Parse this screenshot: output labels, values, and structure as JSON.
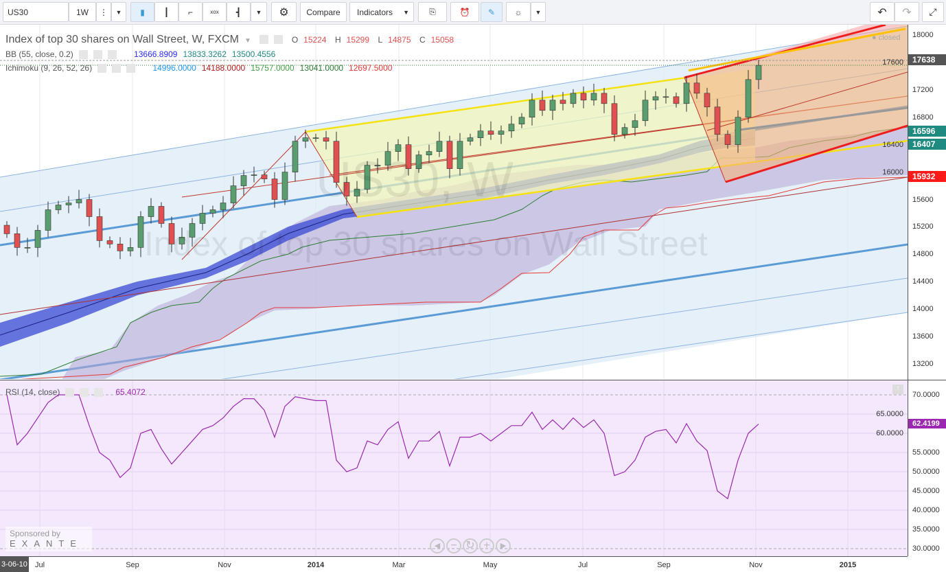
{
  "toolbar": {
    "symbol": "US30",
    "interval": "1W",
    "compare": "Compare",
    "indicators": "Indicators",
    "icons": [
      "more-icon",
      "dropdown-icon",
      "candles-icon",
      "bars-icon",
      "line-icon",
      "point-figure-icon",
      "renko-icon",
      "settings-icon",
      "embed-icon",
      "alert-icon",
      "brush-icon",
      "bulb-icon",
      "undo-icon",
      "redo-icon",
      "fullscreen-icon"
    ]
  },
  "legend": {
    "title": "Index of top 30 shares on Wall Street, W, FXCM",
    "o_label": "O",
    "o": "15224",
    "h_label": "H",
    "h": "15299",
    "l_label": "L",
    "l": "14875",
    "c_label": "C",
    "c": "15058",
    "bb": {
      "name": "BB (55, close, 0.2)",
      "v1": "13666.8909",
      "v2": "13833.3262",
      "v3": "13500.4556"
    },
    "ichimoku": {
      "name": "Ichimoku (9, 26, 52, 26)",
      "v1": "14996.0000",
      "v2": "14188.0000",
      "v3": "15757.0000",
      "v4": "13041.0000",
      "v5": "12697.5000"
    },
    "rsi": {
      "name": "RSI (14, close)",
      "value": "65.4072"
    }
  },
  "market_status": "closed",
  "watermark": {
    "symbol": "US30, W",
    "description": "Index of top 30 shares on Wall Street"
  },
  "sponsor": {
    "label": "Sponsored by",
    "brand": "EXANTE"
  },
  "price_axis": {
    "ticks": [
      "18000",
      "17600",
      "17200",
      "16800",
      "16400",
      "16000",
      "15600",
      "15200",
      "14800",
      "14400",
      "14000",
      "13600",
      "13200"
    ],
    "labels": [
      {
        "text": "17638",
        "color": "#555555",
        "price": 17638
      },
      {
        "text": "16596",
        "color": "#1e8a80",
        "price": 16596
      },
      {
        "text": "16407",
        "color": "#1e8a80",
        "price": 16407
      },
      {
        "text": "15932",
        "color": "#ff1a1a",
        "price": 15932
      }
    ]
  },
  "rsi_axis": {
    "ticks": [
      "70.0000",
      "65.0000",
      "60.0000",
      "55.0000",
      "50.0000",
      "45.0000",
      "40.0000",
      "35.0000",
      "30.0000"
    ],
    "current": "62.4199",
    "color": "#9c27b0"
  },
  "time_axis": {
    "cursor": "3-06-10",
    "ticks": [
      {
        "t": "Jul",
        "b": false
      },
      {
        "t": "Sep",
        "b": false
      },
      {
        "t": "Nov",
        "b": false
      },
      {
        "t": "2014",
        "b": true
      },
      {
        "t": "Mar",
        "b": false
      },
      {
        "t": "May",
        "b": false
      },
      {
        "t": "Jul",
        "b": false
      },
      {
        "t": "Sep",
        "b": false
      },
      {
        "t": "Nov",
        "b": false
      },
      {
        "t": "2015",
        "b": true
      }
    ]
  },
  "colors": {
    "up": "#5a9e6f",
    "down": "#e05050",
    "rsi": "#9c27b0"
  },
  "chart_data": {
    "type": "candlestick",
    "closes": [
      15100,
      14900,
      14900,
      15150,
      15450,
      15520,
      15550,
      15600,
      15350,
      15000,
      14950,
      14850,
      14900,
      15350,
      15500,
      15250,
      14950,
      15050,
      15250,
      15400,
      15450,
      15550,
      15800,
      15950,
      15960,
      15900,
      15600,
      16000,
      16450,
      16500,
      16500,
      16450,
      15850,
      15650,
      15750,
      16100,
      16100,
      16300,
      16400,
      16050,
      16250,
      16300,
      16450,
      16050,
      16450,
      16500,
      16600,
      16550,
      16600,
      16700,
      16800,
      17050,
      16900,
      17050,
      17000,
      17150,
      17050,
      17150,
      17000,
      16550,
      16650,
      16750,
      17050,
      17100,
      17100,
      17000,
      17300,
      17150,
      16950,
      16550,
      16400,
      16800,
      17350,
      17558
    ],
    "rsi": [
      70,
      57,
      60,
      64,
      68,
      70,
      70,
      70,
      62,
      55,
      53,
      48.5,
      51,
      60,
      61,
      56,
      52,
      55,
      58,
      61,
      62,
      64,
      67,
      69,
      69,
      66,
      59,
      67,
      69.5,
      69,
      68.5,
      68.5,
      53,
      50,
      51,
      58,
      57,
      61,
      63,
      53.5,
      58,
      58,
      60.5,
      51.5,
      59,
      59,
      60,
      58,
      60,
      62,
      62,
      65.5,
      61,
      63.5,
      61,
      64,
      61.5,
      63.5,
      60,
      49,
      50,
      53,
      59,
      60.5,
      61,
      57.5,
      62.5,
      58,
      55.5,
      45,
      43,
      53,
      60,
      62.4
    ],
    "price_range": [
      12900,
      18300
    ],
    "rsi_range": [
      28,
      72
    ]
  }
}
